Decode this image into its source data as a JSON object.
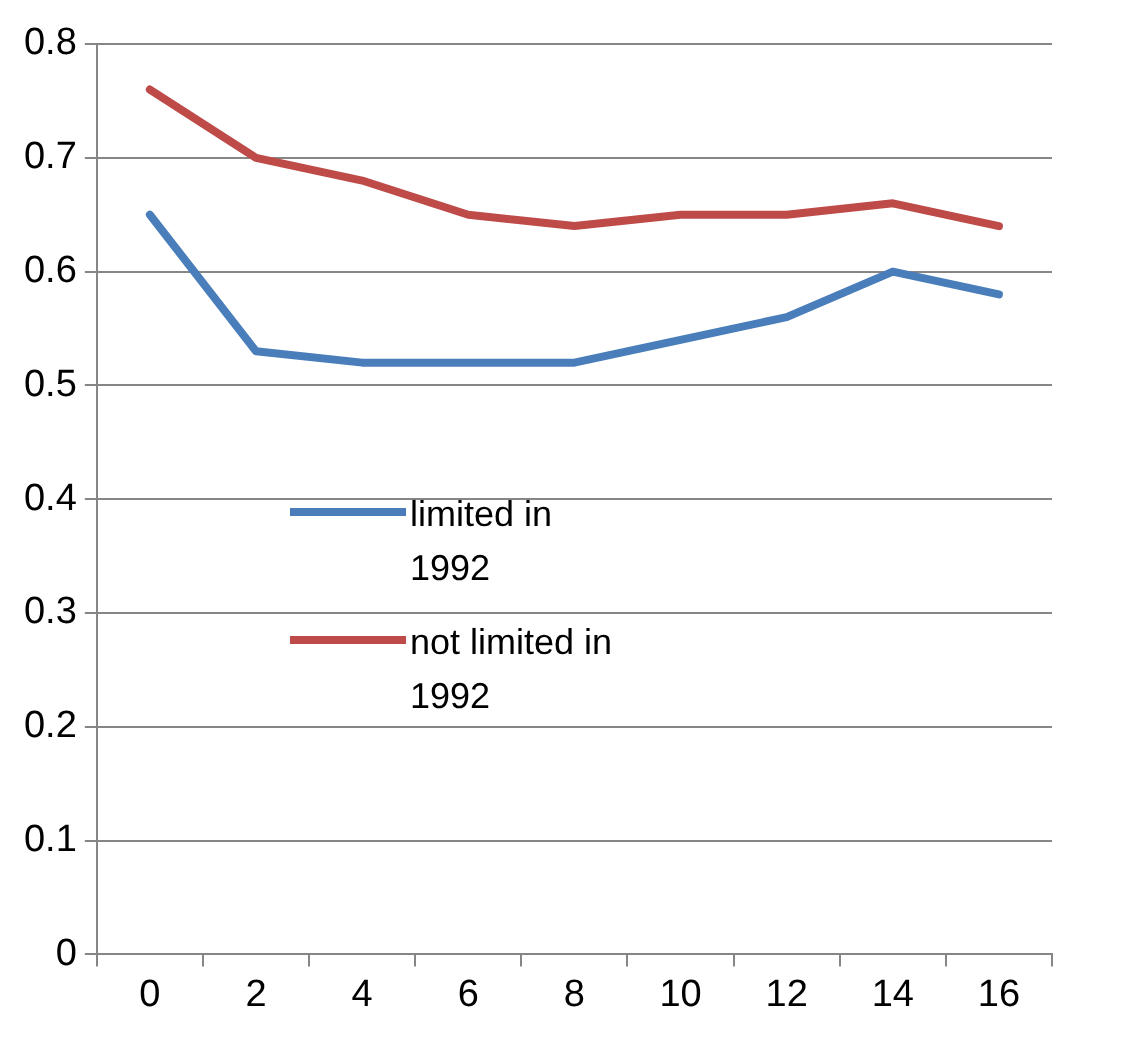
{
  "chart_data": {
    "type": "line",
    "categories": [
      "0",
      "2",
      "4",
      "6",
      "8",
      "10",
      "12",
      "14",
      "16"
    ],
    "series": [
      {
        "name": "limited in 1992",
        "color": "#4a7ebb",
        "values": [
          0.65,
          0.53,
          0.52,
          0.52,
          0.52,
          0.54,
          0.56,
          0.6,
          0.58
        ]
      },
      {
        "name": "not limited in 1992",
        "color": "#be4b48",
        "values": [
          0.76,
          0.7,
          0.68,
          0.65,
          0.64,
          0.65,
          0.65,
          0.66,
          0.64
        ]
      }
    ],
    "ylim": [
      0,
      0.8
    ],
    "yticks": [
      0,
      0.1,
      0.2,
      0.3,
      0.4,
      0.5,
      0.6,
      0.7,
      0.8
    ],
    "grid": "y",
    "legend": "center",
    "marker": "none",
    "line_style": "solid"
  }
}
